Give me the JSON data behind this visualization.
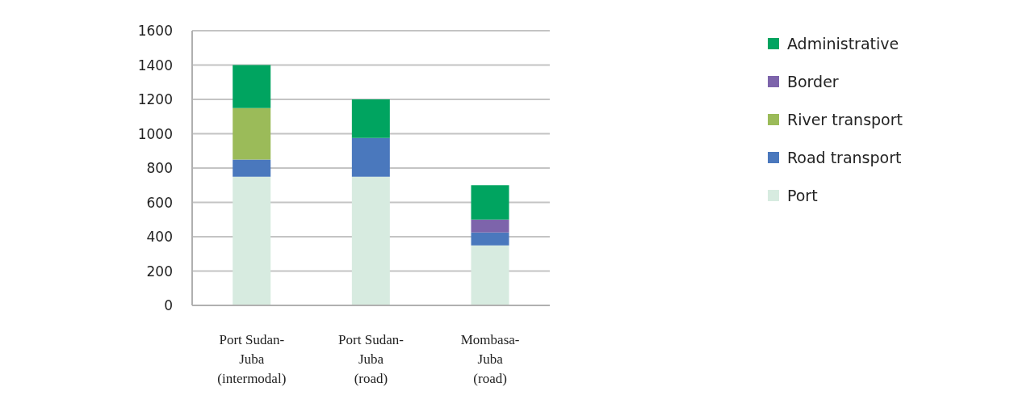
{
  "chart_data": {
    "type": "bar",
    "stacked": true,
    "categories": [
      "Port Sudan-\nJuba\n(intermodal)",
      "Port Sudan-\nJuba\n(road)",
      "Mombasa-\nJuba\n(road)"
    ],
    "series": [
      {
        "name": "Port",
        "color": "#d7ebe0",
        "values": [
          750,
          750,
          350
        ]
      },
      {
        "name": "Road transport",
        "color": "#4a78bd",
        "values": [
          100,
          225,
          75
        ]
      },
      {
        "name": "River transport",
        "color": "#9bbb59",
        "values": [
          300,
          0,
          0
        ]
      },
      {
        "name": "Border",
        "color": "#7d64ab",
        "values": [
          0,
          0,
          75
        ]
      },
      {
        "name": "Administrative",
        "color": "#00a460",
        "values": [
          250,
          225,
          200
        ]
      }
    ],
    "ylim": [
      0,
      1600
    ],
    "yticks": [
      0,
      200,
      400,
      600,
      800,
      1000,
      1200,
      1400,
      1600
    ],
    "grid": "y",
    "legend": "right"
  }
}
